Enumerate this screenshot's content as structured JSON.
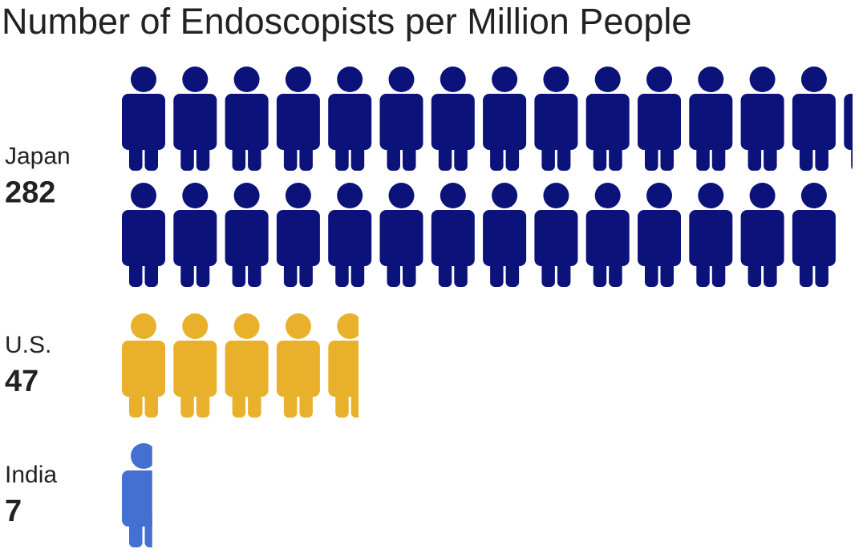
{
  "chart_data": {
    "type": "pictogram",
    "title": "Number of Endoscopists per Million People",
    "categories": [
      "Japan",
      "U.S.",
      "India"
    ],
    "values": [
      282,
      47,
      7
    ],
    "colors": [
      "#0b1279",
      "#e9b12b",
      "#4470d2"
    ]
  }
}
